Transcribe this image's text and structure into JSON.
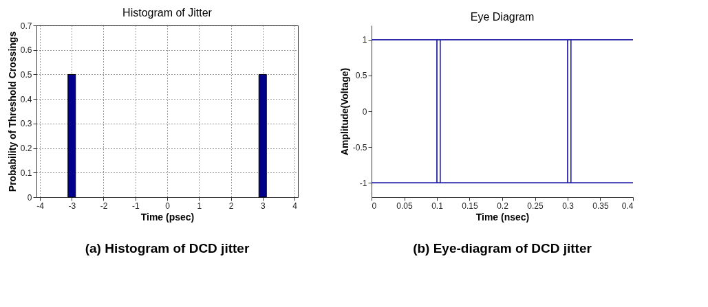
{
  "chart_data": [
    {
      "type": "bar",
      "title": "Histogram of Jitter",
      "xlabel": "Time (psec)",
      "ylabel": "Probability of Threshold Crossings",
      "x": [
        -3,
        3
      ],
      "values": [
        0.5,
        0.5
      ],
      "color": "#00008b",
      "xlim": [
        -4,
        4
      ],
      "xticks": [
        -4,
        -3,
        -2,
        -1,
        0,
        1,
        2,
        3,
        4
      ],
      "ylim": [
        0,
        0.7
      ],
      "yticks": [
        0,
        0.1,
        0.2,
        0.3,
        0.4,
        0.5,
        0.6,
        0.7
      ],
      "grid": true,
      "annotations": [
        "(a) Histogram of DCD jitter"
      ]
    },
    {
      "type": "line",
      "title": "Eye Diagram",
      "xlabel": "Time (nsec)",
      "ylabel": "Amplitude(Voltage)",
      "xlim": [
        0,
        0.4
      ],
      "xticks": [
        0,
        0.05,
        0.1,
        0.15,
        0.2,
        0.25,
        0.3,
        0.35,
        0.4
      ],
      "ylim": [
        -1.2,
        1.2
      ],
      "yticks": [
        -1,
        -0.5,
        0,
        0.5,
        1
      ],
      "grid": false,
      "annotations": [
        "(b) Eye-diagram of DCD jitter"
      ],
      "series": [
        {
          "color": "#2020a8",
          "x": [
            0,
            0.1,
            0.1,
            0.3,
            0.3,
            0.4
          ],
          "values": [
            1,
            1,
            -1,
            -1,
            1,
            1
          ]
        },
        {
          "color": "#2020a8",
          "x": [
            0,
            0.1,
            0.1,
            0.3,
            0.3,
            0.4
          ],
          "values": [
            -1,
            -1,
            1,
            1,
            -1,
            -1
          ]
        },
        {
          "color": "#2020a8",
          "x": [
            0,
            0.105,
            0.105,
            0.305,
            0.305,
            0.4
          ],
          "values": [
            1,
            1,
            -1,
            -1,
            1,
            1
          ]
        },
        {
          "color": "#2020a8",
          "x": [
            0,
            0.105,
            0.105,
            0.305,
            0.305,
            0.4
          ],
          "values": [
            -1,
            -1,
            1,
            1,
            -1,
            -1
          ]
        }
      ]
    }
  ]
}
